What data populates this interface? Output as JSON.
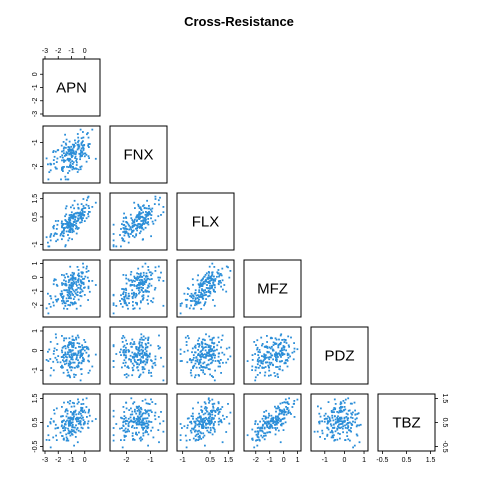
{
  "chart_data": {
    "type": "scatter",
    "subtype": "pairs-lower-triangle",
    "title": "Cross-Resistance",
    "variables": [
      {
        "name": "APN",
        "range": [
          -3,
          1
        ],
        "ticks": [
          -3,
          -2,
          -1,
          0
        ]
      },
      {
        "name": "FNX",
        "range": [
          -2.6,
          -0.4
        ],
        "ticks": [
          -2.0,
          -1.0
        ]
      },
      {
        "name": "FLX",
        "range": [
          -1.2,
          1.7
        ],
        "ticks": [
          -1.0,
          0.5,
          1.5
        ]
      },
      {
        "name": "MFZ",
        "range": [
          -2.7,
          1.1
        ],
        "ticks": [
          -2,
          -1,
          0,
          1
        ]
      },
      {
        "name": "PDZ",
        "range": [
          -1.6,
          1.1
        ],
        "ticks": [
          -1.0,
          0.0,
          1.0
        ]
      },
      {
        "name": "TBZ",
        "range": [
          -0.6,
          1.6
        ],
        "ticks": [
          -0.5,
          0.5,
          1.5
        ]
      }
    ],
    "point_color": "#2b8ed8",
    "n_points": 200,
    "pair_relationships": [
      {
        "x": "APN",
        "y": "FNX",
        "trend": "weak positive"
      },
      {
        "x": "APN",
        "y": "FLX",
        "trend": "strong positive"
      },
      {
        "x": "FNX",
        "y": "FLX",
        "trend": "moderate positive"
      },
      {
        "x": "APN",
        "y": "MFZ",
        "trend": "moderate positive"
      },
      {
        "x": "FNX",
        "y": "MFZ",
        "trend": "moderate positive"
      },
      {
        "x": "FLX",
        "y": "MFZ",
        "trend": "moderate positive"
      },
      {
        "x": "APN",
        "y": "PDZ",
        "trend": "none"
      },
      {
        "x": "FNX",
        "y": "PDZ",
        "trend": "none"
      },
      {
        "x": "FLX",
        "y": "PDZ",
        "trend": "none"
      },
      {
        "x": "MFZ",
        "y": "PDZ",
        "trend": "weak positive"
      },
      {
        "x": "APN",
        "y": "TBZ",
        "trend": "moderate positive"
      },
      {
        "x": "FNX",
        "y": "TBZ",
        "trend": "weak positive"
      },
      {
        "x": "FLX",
        "y": "TBZ",
        "trend": "moderate positive"
      },
      {
        "x": "MFZ",
        "y": "TBZ",
        "trend": "strong positive"
      },
      {
        "x": "PDZ",
        "y": "TBZ",
        "trend": "weak negative"
      }
    ],
    "grid": false,
    "legend": "none"
  }
}
